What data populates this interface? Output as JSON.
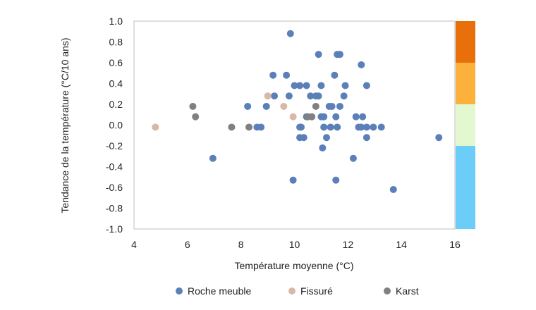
{
  "chart_data": {
    "type": "scatter",
    "title": "",
    "xlabel": "Température moyenne (°C)",
    "ylabel": "Tendance de la température (°C/10 ans)",
    "xlim": [
      4,
      16
    ],
    "ylim": [
      -1.0,
      1.0
    ],
    "x_ticks": [
      "4",
      "6",
      "8",
      "10",
      "12",
      "14",
      "16"
    ],
    "y_ticks": [
      "1.0",
      "0.8",
      "0.6",
      "0.4",
      "0.2",
      "0.0",
      "-0.2",
      "-0.4",
      "-0.6",
      "-0.8",
      "-1.0"
    ],
    "grid": false,
    "legend_position": "bottom",
    "series": [
      {
        "name": "Roche meuble",
        "color": "#5b7fb8",
        "points": [
          [
            9.85,
            0.88
          ],
          [
            10.9,
            0.68
          ],
          [
            11.6,
            0.68
          ],
          [
            11.7,
            0.68
          ],
          [
            12.5,
            0.58
          ],
          [
            9.2,
            0.48
          ],
          [
            9.7,
            0.48
          ],
          [
            11.5,
            0.48
          ],
          [
            10.0,
            0.38
          ],
          [
            10.2,
            0.38
          ],
          [
            10.45,
            0.38
          ],
          [
            11.0,
            0.38
          ],
          [
            11.9,
            0.38
          ],
          [
            12.7,
            0.38
          ],
          [
            9.25,
            0.28
          ],
          [
            9.8,
            0.28
          ],
          [
            10.6,
            0.28
          ],
          [
            10.8,
            0.28
          ],
          [
            10.9,
            0.28
          ],
          [
            11.85,
            0.28
          ],
          [
            8.25,
            0.18
          ],
          [
            8.95,
            0.18
          ],
          [
            11.3,
            0.18
          ],
          [
            11.4,
            0.18
          ],
          [
            11.7,
            0.18
          ],
          [
            10.45,
            0.08
          ],
          [
            11.0,
            0.08
          ],
          [
            11.1,
            0.08
          ],
          [
            11.55,
            0.08
          ],
          [
            12.3,
            0.08
          ],
          [
            12.55,
            0.08
          ],
          [
            8.6,
            -0.02
          ],
          [
            8.75,
            -0.02
          ],
          [
            10.2,
            -0.02
          ],
          [
            10.25,
            -0.02
          ],
          [
            11.1,
            -0.02
          ],
          [
            11.35,
            -0.02
          ],
          [
            11.6,
            -0.02
          ],
          [
            12.4,
            -0.02
          ],
          [
            12.5,
            -0.02
          ],
          [
            12.7,
            -0.02
          ],
          [
            12.95,
            -0.02
          ],
          [
            13.25,
            -0.02
          ],
          [
            10.2,
            -0.12
          ],
          [
            10.35,
            -0.12
          ],
          [
            11.2,
            -0.12
          ],
          [
            12.7,
            -0.12
          ],
          [
            15.4,
            -0.12
          ],
          [
            11.05,
            -0.22
          ],
          [
            6.95,
            -0.32
          ],
          [
            12.2,
            -0.32
          ],
          [
            9.95,
            -0.53
          ],
          [
            11.55,
            -0.53
          ],
          [
            13.7,
            -0.62
          ]
        ]
      },
      {
        "name": "Fissuré",
        "color": "#d9b8a8",
        "points": [
          [
            4.8,
            -0.02
          ],
          [
            9.0,
            0.28
          ],
          [
            9.6,
            0.18
          ],
          [
            9.95,
            0.08
          ]
        ]
      },
      {
        "name": "Karst",
        "color": "#808080",
        "points": [
          [
            6.2,
            0.18
          ],
          [
            6.3,
            0.08
          ],
          [
            7.65,
            -0.02
          ],
          [
            8.3,
            -0.02
          ],
          [
            10.5,
            0.08
          ],
          [
            10.65,
            0.08
          ],
          [
            10.8,
            0.18
          ]
        ]
      }
    ],
    "color_scale": [
      {
        "from": 0.6,
        "to": 1.0,
        "color": "#e8700a"
      },
      {
        "from": 0.2,
        "to": 0.6,
        "color": "#fbb13c"
      },
      {
        "from": -0.2,
        "to": 0.2,
        "color": "#e3f8d0"
      },
      {
        "from": -1.0,
        "to": -0.2,
        "color": "#6bcdf8"
      }
    ]
  }
}
